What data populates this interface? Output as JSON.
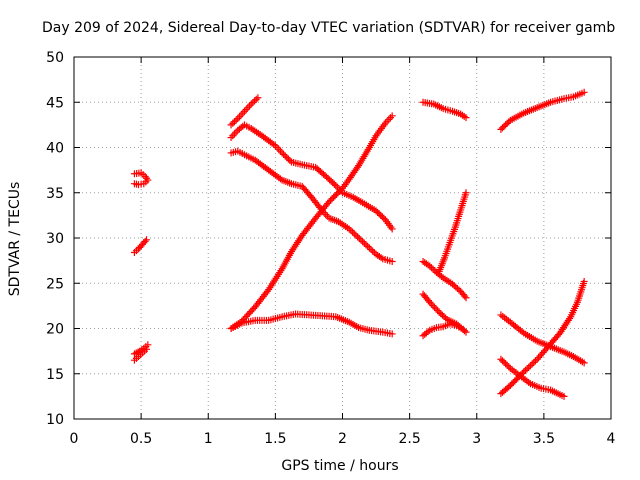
{
  "chart_data": {
    "type": "scatter",
    "title": "Day 209 of 2024, Sidereal Day-to-day VTEC variation (SDTVAR) for receiver gamb",
    "xlabel": "GPS time / hours",
    "ylabel": "SDTVAR / TECUs",
    "xlim": [
      0,
      4
    ],
    "ylim": [
      10,
      50
    ],
    "xticks": [
      "0",
      "0.5",
      "1",
      "1.5",
      "2",
      "2.5",
      "3",
      "3.5",
      "4"
    ],
    "yticks": [
      "10",
      "15",
      "20",
      "25",
      "30",
      "35",
      "40",
      "45",
      "50"
    ],
    "grid": true,
    "marker": "plus",
    "color": "#ff0000",
    "series": [
      {
        "points": [
          [
            0.45,
            37.1
          ],
          [
            0.5,
            37.2
          ],
          [
            0.53,
            36.8
          ],
          [
            0.55,
            36.4
          ],
          [
            0.52,
            36.0
          ],
          [
            0.48,
            35.9
          ],
          [
            0.45,
            36.0
          ]
        ]
      },
      {
        "points": [
          [
            0.45,
            28.4
          ],
          [
            0.48,
            28.8
          ],
          [
            0.51,
            29.3
          ],
          [
            0.54,
            29.8
          ]
        ]
      },
      {
        "points": [
          [
            0.45,
            17.2
          ],
          [
            0.49,
            17.5
          ],
          [
            0.52,
            17.8
          ],
          [
            0.55,
            18.2
          ]
        ]
      },
      {
        "points": [
          [
            0.45,
            16.5
          ],
          [
            0.48,
            16.9
          ],
          [
            0.51,
            17.3
          ],
          [
            0.54,
            17.7
          ]
        ]
      },
      {
        "points": [
          [
            1.17,
            42.5
          ],
          [
            1.22,
            43.2
          ],
          [
            1.27,
            44.0
          ],
          [
            1.32,
            44.8
          ],
          [
            1.37,
            45.5
          ]
        ]
      },
      {
        "points": [
          [
            1.17,
            41.1
          ],
          [
            1.22,
            41.9
          ],
          [
            1.27,
            42.5
          ],
          [
            1.32,
            42.1
          ],
          [
            1.4,
            41.3
          ],
          [
            1.5,
            40.2
          ],
          [
            1.55,
            39.4
          ],
          [
            1.62,
            38.4
          ],
          [
            1.7,
            38.1
          ],
          [
            1.8,
            37.8
          ],
          [
            1.87,
            36.9
          ],
          [
            1.95,
            35.8
          ],
          [
            2.0,
            35.0
          ],
          [
            2.08,
            34.5
          ],
          [
            2.15,
            33.9
          ],
          [
            2.25,
            33.0
          ],
          [
            2.32,
            32.0
          ],
          [
            2.37,
            31.0
          ]
        ]
      },
      {
        "points": [
          [
            1.17,
            39.4
          ],
          [
            1.22,
            39.6
          ],
          [
            1.27,
            39.2
          ],
          [
            1.35,
            38.6
          ],
          [
            1.45,
            37.5
          ],
          [
            1.55,
            36.4
          ],
          [
            1.62,
            36.0
          ],
          [
            1.7,
            35.7
          ],
          [
            1.77,
            34.5
          ],
          [
            1.85,
            33.0
          ],
          [
            1.9,
            32.2
          ],
          [
            1.97,
            31.8
          ],
          [
            2.05,
            31.0
          ],
          [
            2.15,
            29.6
          ],
          [
            2.25,
            28.2
          ],
          [
            2.3,
            27.7
          ],
          [
            2.37,
            27.4
          ]
        ]
      },
      {
        "points": [
          [
            1.17,
            20.0
          ],
          [
            1.25,
            20.8
          ],
          [
            1.35,
            22.4
          ],
          [
            1.45,
            24.3
          ],
          [
            1.55,
            26.6
          ],
          [
            1.62,
            28.5
          ],
          [
            1.7,
            30.3
          ],
          [
            1.8,
            32.2
          ],
          [
            1.9,
            34.0
          ],
          [
            2.0,
            35.5
          ],
          [
            2.05,
            36.5
          ],
          [
            2.12,
            38.0
          ],
          [
            2.2,
            40.0
          ],
          [
            2.25,
            41.3
          ],
          [
            2.32,
            42.7
          ],
          [
            2.37,
            43.5
          ]
        ]
      },
      {
        "points": [
          [
            1.17,
            20.0
          ],
          [
            1.25,
            20.6
          ],
          [
            1.35,
            20.9
          ],
          [
            1.45,
            20.9
          ],
          [
            1.55,
            21.3
          ],
          [
            1.65,
            21.6
          ],
          [
            1.75,
            21.5
          ],
          [
            1.85,
            21.4
          ],
          [
            1.95,
            21.3
          ],
          [
            2.05,
            20.7
          ],
          [
            2.12,
            20.1
          ],
          [
            2.2,
            19.8
          ],
          [
            2.3,
            19.6
          ],
          [
            2.37,
            19.4
          ]
        ]
      },
      {
        "points": [
          [
            2.6,
            45.0
          ],
          [
            2.68,
            44.8
          ],
          [
            2.75,
            44.3
          ],
          [
            2.82,
            44.0
          ],
          [
            2.88,
            43.7
          ],
          [
            2.92,
            43.3
          ]
        ]
      },
      {
        "points": [
          [
            2.6,
            27.4
          ],
          [
            2.65,
            26.9
          ],
          [
            2.7,
            26.2
          ],
          [
            2.75,
            25.6
          ],
          [
            2.82,
            24.9
          ],
          [
            2.88,
            24.1
          ],
          [
            2.92,
            23.4
          ]
        ]
      },
      {
        "points": [
          [
            2.6,
            23.8
          ],
          [
            2.65,
            22.9
          ],
          [
            2.72,
            21.8
          ],
          [
            2.78,
            21.0
          ],
          [
            2.85,
            20.5
          ],
          [
            2.92,
            19.6
          ]
        ]
      },
      {
        "points": [
          [
            2.6,
            19.2
          ],
          [
            2.65,
            19.8
          ],
          [
            2.7,
            20.1
          ],
          [
            2.75,
            20.2
          ],
          [
            2.8,
            20.5
          ],
          [
            2.85,
            20.3
          ],
          [
            2.9,
            19.9
          ]
        ]
      },
      {
        "points": [
          [
            2.72,
            26.3
          ],
          [
            2.76,
            27.8
          ],
          [
            2.8,
            29.5
          ],
          [
            2.84,
            31.2
          ],
          [
            2.88,
            33.1
          ],
          [
            2.92,
            35.0
          ]
        ]
      },
      {
        "points": [
          [
            3.18,
            42.0
          ],
          [
            3.25,
            43.0
          ],
          [
            3.35,
            43.8
          ],
          [
            3.45,
            44.4
          ],
          [
            3.55,
            45.0
          ],
          [
            3.65,
            45.4
          ],
          [
            3.72,
            45.6
          ],
          [
            3.8,
            46.1
          ]
        ]
      },
      {
        "points": [
          [
            3.18,
            21.5
          ],
          [
            3.25,
            20.7
          ],
          [
            3.35,
            19.5
          ],
          [
            3.45,
            18.6
          ],
          [
            3.55,
            18.0
          ],
          [
            3.65,
            17.4
          ],
          [
            3.72,
            16.9
          ],
          [
            3.8,
            16.2
          ]
        ]
      },
      {
        "points": [
          [
            3.18,
            12.8
          ],
          [
            3.25,
            13.7
          ],
          [
            3.35,
            15.2
          ],
          [
            3.45,
            16.6
          ],
          [
            3.55,
            18.3
          ],
          [
            3.62,
            19.5
          ],
          [
            3.7,
            21.3
          ],
          [
            3.75,
            22.9
          ],
          [
            3.8,
            25.2
          ]
        ]
      },
      {
        "points": [
          [
            3.18,
            16.6
          ],
          [
            3.25,
            15.6
          ],
          [
            3.32,
            14.8
          ],
          [
            3.4,
            13.9
          ],
          [
            3.48,
            13.4
          ],
          [
            3.55,
            13.2
          ],
          [
            3.62,
            12.7
          ],
          [
            3.65,
            12.5
          ]
        ]
      }
    ]
  }
}
